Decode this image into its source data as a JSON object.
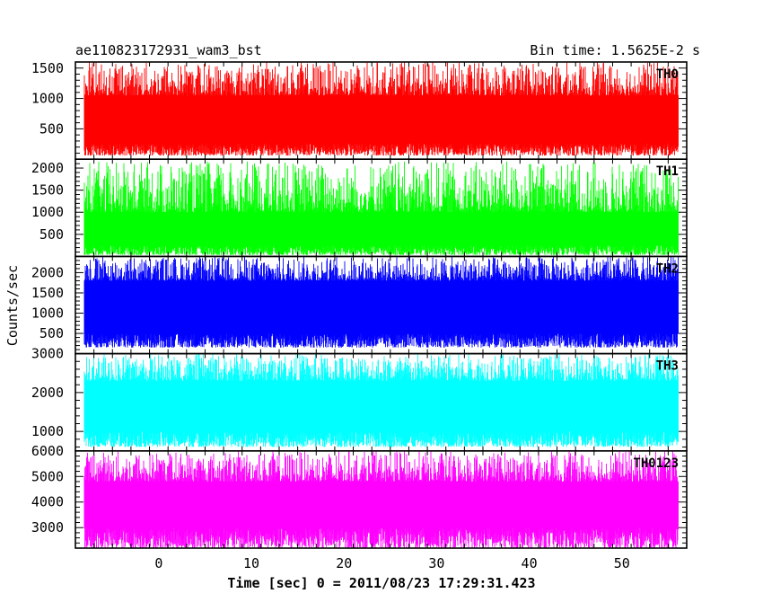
{
  "chart_data": {
    "type": "line",
    "title_left": "ae110823172931_wam3_bst",
    "title_right": "Bin time: 1.5625E-2 s",
    "xlabel": "Time [sec] 0 = 2011/08/23 17:29:31.423",
    "ylabel": "Counts/sec",
    "xlim": [
      -9,
      57
    ],
    "x_data_range": [
      -8,
      56
    ],
    "xticks": [
      0,
      10,
      20,
      30,
      40,
      50
    ],
    "xtick_labels": [
      "0",
      "10",
      "20",
      "30",
      "40",
      "50"
    ],
    "grid": false,
    "panels": [
      {
        "name": "TH0",
        "color": "#ff0000",
        "ylim": [
          0,
          1600
        ],
        "yticks": [
          500,
          1000,
          1500
        ],
        "ytick_labels": [
          "500",
          "1000",
          "1500"
        ],
        "low_range": [
          60,
          260
        ],
        "high_range": [
          1050,
          1600
        ]
      },
      {
        "name": "TH1",
        "color": "#00ff00",
        "ylim": [
          0,
          2200
        ],
        "yticks": [
          500,
          1000,
          1500,
          2000
        ],
        "ytick_labels": [
          "500",
          "1000",
          "1500",
          "2000"
        ],
        "low_range": [
          30,
          250
        ],
        "high_range": [
          1000,
          2150
        ]
      },
      {
        "name": "TH2",
        "color": "#0000ff",
        "ylim": [
          0,
          2400
        ],
        "yticks": [
          500,
          1000,
          1500,
          2000
        ],
        "ytick_labels": [
          "500",
          "1000",
          "1500",
          "2000"
        ],
        "low_range": [
          150,
          500
        ],
        "high_range": [
          1800,
          2400
        ]
      },
      {
        "name": "TH3",
        "color": "#00ffff",
        "ylim": [
          500,
          3000
        ],
        "yticks": [
          1000,
          2000,
          3000
        ],
        "ytick_labels": [
          "1000",
          "2000",
          "3000"
        ],
        "low_range": [
          600,
          1000
        ],
        "high_range": [
          2300,
          3000
        ]
      },
      {
        "name": "TH0123",
        "color": "#ff00ff",
        "ylim": [
          2200,
          6000
        ],
        "yticks": [
          3000,
          4000,
          5000,
          6000
        ],
        "ytick_labels": [
          "3000",
          "4000",
          "5000",
          "6000"
        ],
        "low_range": [
          2200,
          3000
        ],
        "high_range": [
          4800,
          6000
        ]
      }
    ]
  }
}
